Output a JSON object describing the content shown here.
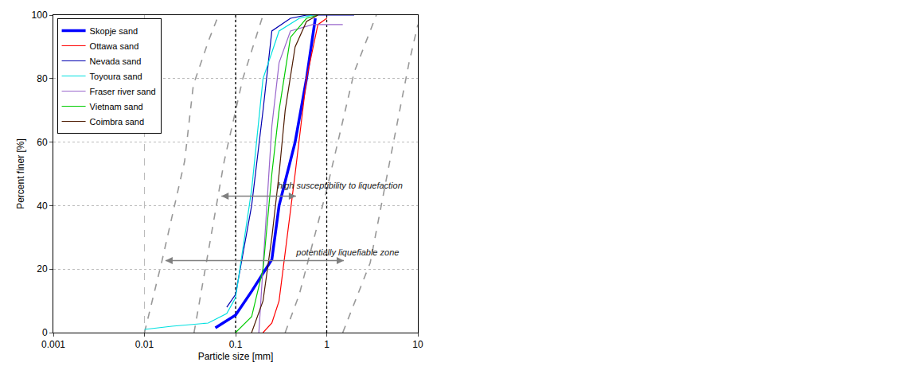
{
  "chart_data": {
    "type": "line",
    "x_label": "Particle size [mm]",
    "y_label": "Percent finer [%]",
    "log": "x",
    "grid": true,
    "legend": "upper left",
    "xlim": [
      0.001,
      10
    ],
    "xticks": [
      0.001,
      0.01,
      0.1,
      1,
      10
    ],
    "ylim": [
      0,
      100
    ],
    "yticks": [
      0,
      20,
      40,
      60,
      80,
      100
    ],
    "series": [
      {
        "name": "Skopje sand",
        "color": "#0000ff",
        "line_style": "thick",
        "x": [
          0.06,
          0.1,
          0.15,
          0.25,
          0.3,
          0.45,
          0.6,
          0.75
        ],
        "values": [
          1.5,
          5.5,
          13,
          23,
          40,
          60,
          80,
          99
        ]
      },
      {
        "name": "Ottawa sand",
        "color": "#ff0000",
        "line_style": "solid",
        "x": [
          0.2,
          0.25,
          0.3,
          0.35,
          0.45,
          0.6,
          0.8,
          1
        ],
        "values": [
          0,
          3,
          10,
          25,
          50,
          80,
          97,
          99
        ]
      },
      {
        "name": "Nevada sand",
        "color": "#0000b0",
        "line_style": "solid",
        "x": [
          0.08,
          0.1,
          0.15,
          0.2,
          0.25,
          0.4,
          0.6,
          2
        ],
        "values": [
          8,
          12,
          40,
          70,
          95,
          99,
          100,
          100
        ]
      },
      {
        "name": "Toyoura sand",
        "color": "#00e0e0",
        "line_style": "solid",
        "x": [
          0.01,
          0.02,
          0.05,
          0.08,
          0.1,
          0.15,
          0.2,
          0.3,
          0.5,
          0.7
        ],
        "values": [
          1,
          2,
          3,
          6,
          11,
          45,
          80,
          95,
          99,
          100
        ]
      },
      {
        "name": "Fraser river sand",
        "color": "#9966cc",
        "line_style": "solid",
        "x": [
          0.18,
          0.2,
          0.25,
          0.3,
          0.4,
          0.7,
          1.5
        ],
        "values": [
          0,
          20,
          65,
          85,
          95,
          97,
          97
        ]
      },
      {
        "name": "Vietnam sand",
        "color": "#00cc00",
        "line_style": "solid",
        "x": [
          0.1,
          0.15,
          0.2,
          0.25,
          0.3,
          0.4,
          0.6,
          0.8
        ],
        "values": [
          0,
          5,
          20,
          50,
          70,
          93,
          99,
          100
        ]
      },
      {
        "name": "Coimbra sand",
        "color": "#4d1a00",
        "line_style": "solid",
        "x": [
          0.15,
          0.2,
          0.25,
          0.3,
          0.35,
          0.45,
          0.6,
          0.8
        ],
        "values": [
          0,
          10,
          30,
          50,
          70,
          90,
          98,
          100
        ]
      }
    ],
    "boundaries": [
      {
        "color": "#999999",
        "line_style": "dash",
        "x": [
          0.01,
          0.0154,
          0.0276,
          0.0344,
          0.0506,
          0.065
        ],
        "values": [
          0,
          22,
          54,
          78,
          92,
          100
        ]
      },
      {
        "color": "#999999",
        "line_style": "dash",
        "x": [
          0.035,
          0.05,
          0.075,
          0.12,
          0.2
        ],
        "values": [
          0,
          25,
          54,
          80,
          100
        ]
      },
      {
        "color": "#999999",
        "line_style": "dash",
        "x": [
          0.35,
          0.5,
          1,
          2,
          3.5
        ],
        "values": [
          0,
          12,
          45,
          82,
          100
        ]
      },
      {
        "color": "#999999",
        "line_style": "dash",
        "x": [
          1.5,
          3,
          5,
          8,
          10
        ],
        "values": [
          0,
          22,
          55,
          85,
          97
        ]
      }
    ],
    "reference_lines": {
      "x": [
        0.1,
        1
      ],
      "color": "#000000",
      "line_style": "dot"
    },
    "annotations": [
      {
        "text": "high susceptibility to liquefaction",
        "x": 1.4,
        "y": 46,
        "arrow_x": [
          0.07,
          0.46
        ],
        "arrow_y": 43,
        "color": "#808080"
      },
      {
        "text": "potentially liquefiable zone",
        "x": 1.7,
        "y": 25,
        "arrow_x": [
          0.017,
          1.54
        ],
        "arrow_y": 22.7,
        "color": "#808080"
      }
    ]
  }
}
